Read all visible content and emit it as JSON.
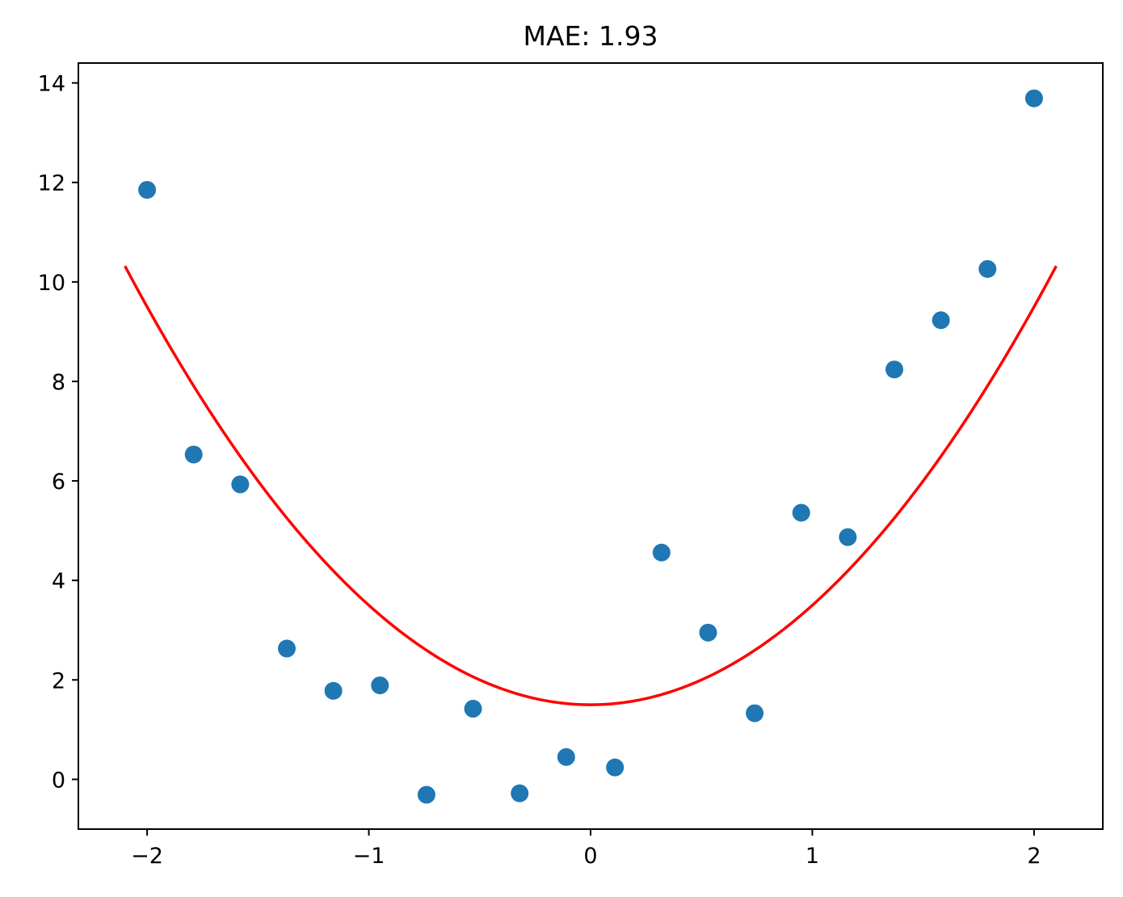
{
  "chart_data": {
    "type": "scatter",
    "title": "MAE: 1.93",
    "xlabel": "",
    "ylabel": "",
    "xlim": [
      -2.31,
      2.31
    ],
    "ylim": [
      -1.0,
      14.4
    ],
    "xticks": [
      -2,
      -1,
      0,
      1,
      2
    ],
    "xtick_labels": [
      "−2",
      "−1",
      "0",
      "1",
      "2"
    ],
    "yticks": [
      0,
      2,
      4,
      6,
      8,
      10,
      12,
      14
    ],
    "ytick_labels": [
      "0",
      "2",
      "4",
      "6",
      "8",
      "10",
      "12",
      "14"
    ],
    "grid": false,
    "series": [
      {
        "type": "scatter",
        "color": "#1f77b4",
        "points": [
          {
            "x": -2.0,
            "y": 11.85
          },
          {
            "x": -1.79,
            "y": 6.53
          },
          {
            "x": -1.58,
            "y": 5.93
          },
          {
            "x": -1.37,
            "y": 2.63
          },
          {
            "x": -1.16,
            "y": 1.78
          },
          {
            "x": -0.95,
            "y": 1.89
          },
          {
            "x": -0.74,
            "y": -0.31
          },
          {
            "x": -0.53,
            "y": 1.42
          },
          {
            "x": -0.32,
            "y": -0.28
          },
          {
            "x": -0.11,
            "y": 0.45
          },
          {
            "x": 0.11,
            "y": 0.24
          },
          {
            "x": 0.32,
            "y": 4.56
          },
          {
            "x": 0.53,
            "y": 2.95
          },
          {
            "x": 0.74,
            "y": 1.33
          },
          {
            "x": 0.95,
            "y": 5.36
          },
          {
            "x": 1.16,
            "y": 4.87
          },
          {
            "x": 1.37,
            "y": 8.24
          },
          {
            "x": 1.58,
            "y": 9.23
          },
          {
            "x": 1.79,
            "y": 10.26
          },
          {
            "x": 2.0,
            "y": 13.69
          }
        ]
      },
      {
        "type": "line",
        "color": "#ff0000",
        "fit": {
          "kind": "quadratic",
          "a": 2.0,
          "b": 0.0,
          "c": 1.5
        },
        "x_range": [
          -2.1,
          2.1
        ]
      }
    ]
  }
}
